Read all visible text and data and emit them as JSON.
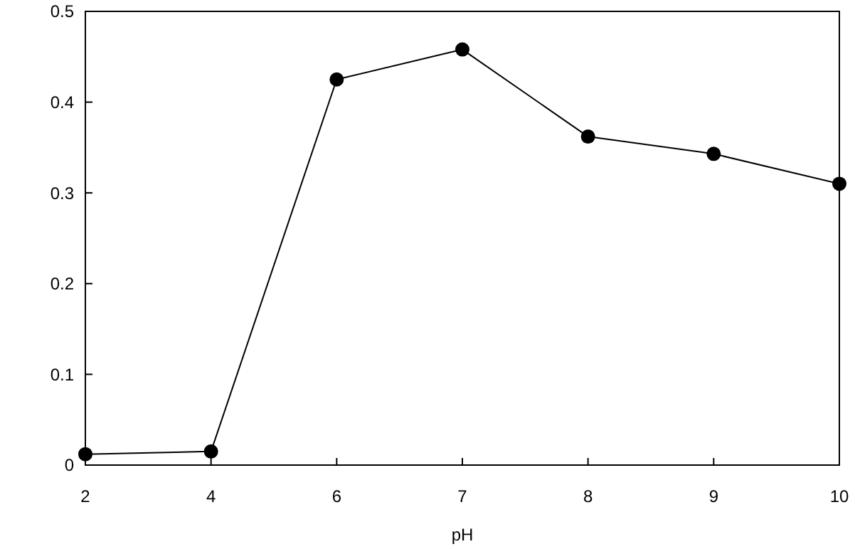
{
  "chart_data": {
    "type": "line",
    "xlabel": "pH",
    "categories": [
      "2",
      "4",
      "6",
      "7",
      "8",
      "9",
      "10"
    ],
    "series": [
      {
        "color": "#000000",
        "values": [
          0.012,
          0.015,
          0.425,
          0.458,
          0.362,
          0.343,
          0.31
        ]
      }
    ],
    "ylim": [
      0,
      0.5
    ],
    "yticks": [
      {
        "value": 0,
        "label": "0"
      },
      0.1,
      0.2,
      0.3,
      0.4,
      0.5
    ],
    "grid": false,
    "marker": "circle",
    "line_style": "solid"
  }
}
